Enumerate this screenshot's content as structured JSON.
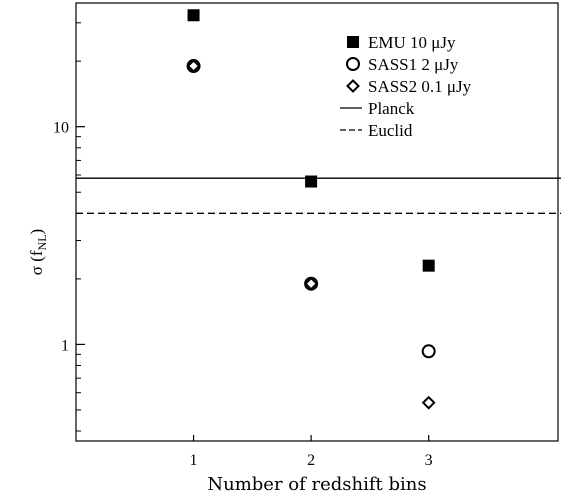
{
  "chart_data": {
    "type": "scatter",
    "xlabel": "Number of redshift bins",
    "ylabel": "σ (f",
    "ylabel_sub": "NL",
    "ylabel_close": ")",
    "y_scale": "log",
    "xlim": [
      0.0,
      4.1
    ],
    "ylim": [
      0.36,
      37
    ],
    "x_ticks": [
      1,
      2,
      3
    ],
    "x_tick_labels": [
      "1",
      "2",
      "3"
    ],
    "y_ticks": [
      1,
      10
    ],
    "y_tick_labels": [
      "1",
      "10"
    ],
    "grid": false,
    "legend_position": "top-right",
    "series": [
      {
        "name": "EMU  10 μJy",
        "marker": "filled-square",
        "x": [
          1,
          2,
          3
        ],
        "y": [
          32.5,
          5.6,
          2.3
        ]
      },
      {
        "name": "SASS1  2  μJy",
        "marker": "open-circle",
        "x": [
          1,
          2,
          3
        ],
        "y": [
          19.0,
          1.9,
          0.93
        ]
      },
      {
        "name": "SASS2  0.1 μJy",
        "marker": "open-diamond",
        "x": [
          1,
          2,
          3
        ],
        "y": [
          19.0,
          1.9,
          0.54
        ]
      }
    ],
    "reference_lines": [
      {
        "name": "Planck",
        "style": "solid",
        "y": 5.8
      },
      {
        "name": "Euclid",
        "style": "dashed",
        "y": 4.0
      }
    ]
  }
}
